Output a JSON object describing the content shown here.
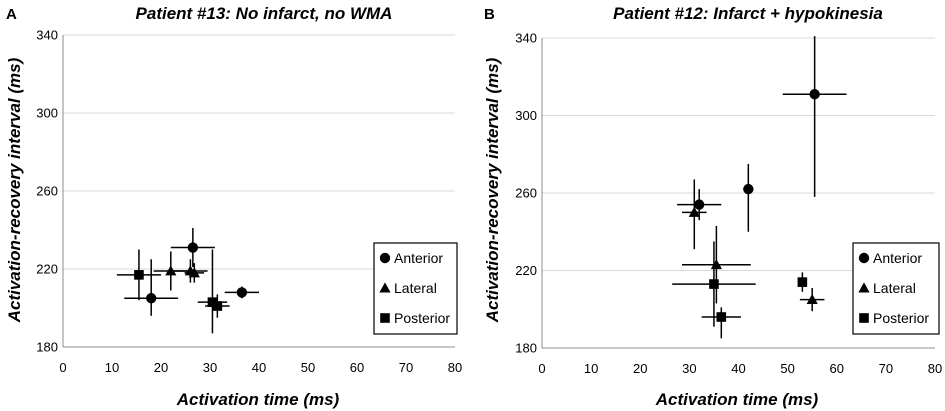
{
  "chart_data": [
    {
      "type": "scatter",
      "panel_letter": "A",
      "title": "Patient #13: No infarct, no WMA",
      "xlabel": "Activation time (ms)",
      "ylabel": "Activation-recovery interval (ms)",
      "xlim": [
        0,
        80
      ],
      "ylim": [
        180,
        340
      ],
      "xticks": [
        0,
        10,
        20,
        30,
        40,
        50,
        60,
        70,
        80
      ],
      "yticks": [
        180,
        220,
        260,
        300,
        340
      ],
      "grid": true,
      "legend_position": "right",
      "legend": [
        {
          "name": "Anterior",
          "marker": "circle"
        },
        {
          "name": "Lateral",
          "marker": "triangle"
        },
        {
          "name": "Posterior",
          "marker": "square"
        }
      ],
      "series": [
        {
          "name": "Anterior",
          "marker": "circle",
          "points": [
            {
              "x": 18,
              "y": 205,
              "xerr": 5.5,
              "yerr": [
                9,
                20
              ]
            },
            {
              "x": 26.5,
              "y": 231,
              "xerr": 4.5,
              "yerr": 10
            },
            {
              "x": 36.5,
              "y": 208,
              "xerr": 3.5,
              "yerr": 3
            }
          ]
        },
        {
          "name": "Lateral",
          "marker": "triangle",
          "points": [
            {
              "x": 22,
              "y": 219,
              "xerr": 3.5,
              "yerr": 10
            },
            {
              "x": 26,
              "y": 219,
              "xerr": 3.5,
              "yerr": 6
            },
            {
              "x": 26.8,
              "y": 218,
              "xerr": 2,
              "yerr": 5
            }
          ]
        },
        {
          "name": "Posterior",
          "marker": "square",
          "points": [
            {
              "x": 15.5,
              "y": 217,
              "xerr": 4.5,
              "yerr": 13
            },
            {
              "x": 30.5,
              "y": 203,
              "xerr": 3,
              "yerr": [
                16,
                27
              ]
            },
            {
              "x": 31.5,
              "y": 201,
              "xerr": 2.5,
              "yerr": 6
            }
          ]
        }
      ]
    },
    {
      "type": "scatter",
      "panel_letter": "B",
      "title": "Patient #12: Infarct + hypokinesia",
      "xlabel": "Activation time (ms)",
      "ylabel": "Activation-recovery interval (ms)",
      "xlim": [
        0,
        80
      ],
      "ylim": [
        180,
        340
      ],
      "xticks": [
        0,
        10,
        20,
        30,
        40,
        50,
        60,
        70,
        80
      ],
      "yticks": [
        180,
        220,
        260,
        300,
        340
      ],
      "grid": true,
      "legend_position": "right",
      "legend": [
        {
          "name": "Anterior",
          "marker": "circle"
        },
        {
          "name": "Lateral",
          "marker": "triangle"
        },
        {
          "name": "Posterior",
          "marker": "square"
        }
      ],
      "series": [
        {
          "name": "Anterior",
          "marker": "circle",
          "points": [
            {
              "x": 32,
              "y": 254,
              "xerr": 4.5,
              "yerr": 8
            },
            {
              "x": 42,
              "y": 262,
              "xerr": 1,
              "yerr": [
                22,
                13
              ]
            },
            {
              "x": 55.5,
              "y": 311,
              "xerr": 6.5,
              "yerr": [
                53,
                30
              ]
            }
          ]
        },
        {
          "name": "Lateral",
          "marker": "triangle",
          "points": [
            {
              "x": 31,
              "y": 250,
              "xerr": 2.5,
              "yerr": [
                19,
                17
              ]
            },
            {
              "x": 35.5,
              "y": 223,
              "xerr": 7,
              "yerr": 20
            },
            {
              "x": 55,
              "y": 205,
              "xerr": 2.5,
              "yerr": 6
            }
          ]
        },
        {
          "name": "Posterior",
          "marker": "square",
          "points": [
            {
              "x": 35,
              "y": 213,
              "xerr": 8.5,
              "yerr": 22
            },
            {
              "x": 36.5,
              "y": 196,
              "xerr": 4,
              "yerr": [
                11,
                5
              ]
            },
            {
              "x": 53,
              "y": 214,
              "xerr": 0.6,
              "yerr": 5
            }
          ]
        }
      ]
    }
  ]
}
